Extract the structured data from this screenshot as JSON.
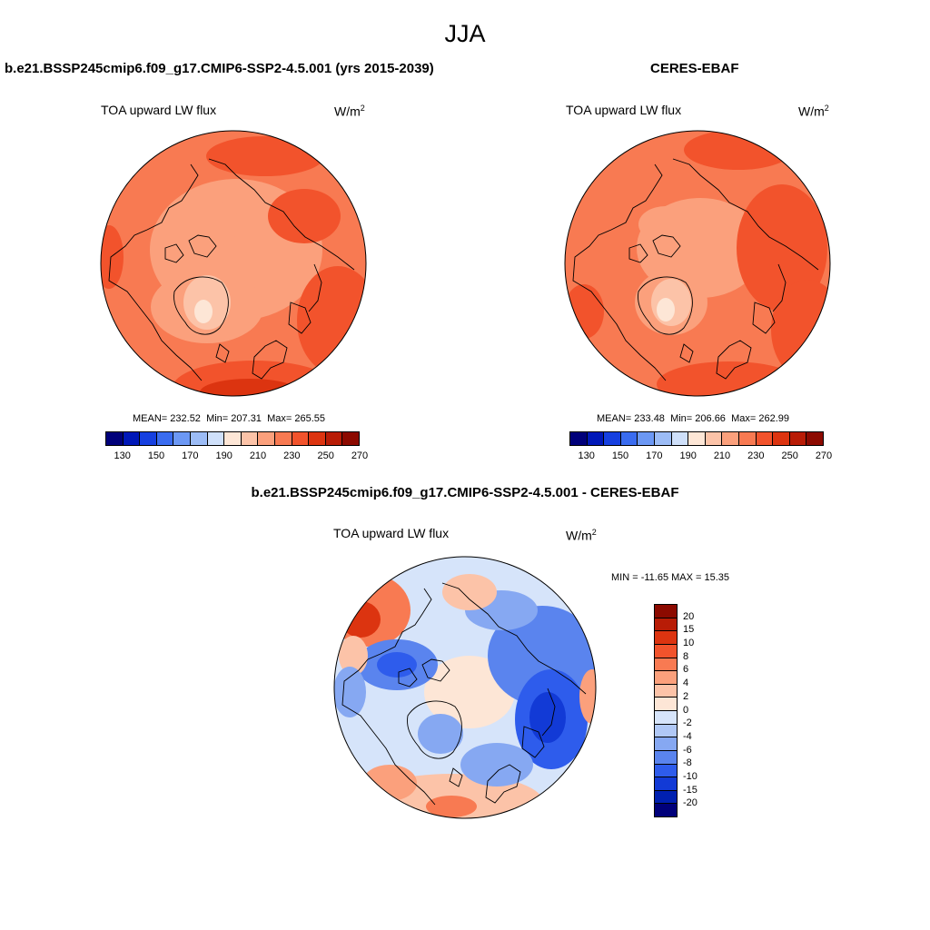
{
  "figure": {
    "title": "JJA"
  },
  "left_panel": {
    "title": "b.e21.BSSP245cmip6.f09_g17.CMIP6-SSP2-4.5.001 (yrs 2015-2039)",
    "subtitle": "TOA upward LW flux",
    "units_base": "W/m",
    "units_exp": "2",
    "mean_label": "MEAN=",
    "mean": "232.52",
    "min_label": "Min=",
    "min": "207.31",
    "max_label": "Max=",
    "max": "265.55"
  },
  "right_panel": {
    "title": "CERES-EBAF",
    "subtitle": "TOA upward LW flux",
    "units_base": "W/m",
    "units_exp": "2",
    "mean_label": "MEAN=",
    "mean": "233.48",
    "min_label": "Min=",
    "min": "206.66",
    "max_label": "Max=",
    "max": "262.99"
  },
  "diff_panel": {
    "title": "b.e21.BSSP245cmip6.f09_g17.CMIP6-SSP2-4.5.001 - CERES-EBAF",
    "subtitle": "TOA upward LW flux",
    "units_base": "W/m",
    "units_exp": "2",
    "minmax": "MIN = -11.65 MAX =  15.35"
  },
  "abs_colorbar": {
    "colors": [
      "#00007a",
      "#0018b8",
      "#1640e0",
      "#3a6cf0",
      "#6c98f4",
      "#9cbcf6",
      "#cfe0fa",
      "#fde6d6",
      "#fcc3a8",
      "#fba07c",
      "#f87a52",
      "#f2532c",
      "#dc3410",
      "#b81c06",
      "#8c0a00"
    ],
    "tick_labels": [
      "130",
      "150",
      "170",
      "190",
      "210",
      "230",
      "250",
      "270"
    ]
  },
  "diff_colorbar": {
    "colors": [
      "#8c0a00",
      "#b81c06",
      "#dc3410",
      "#f2532c",
      "#f87a52",
      "#fba07c",
      "#fcc3a8",
      "#fde6d6",
      "#d6e4fa",
      "#b0c8f6",
      "#86a8f2",
      "#5a84ee",
      "#2e5cec",
      "#123ad6",
      "#0020b0",
      "#00007a"
    ],
    "tick_labels": [
      "20",
      "15",
      "10",
      "8",
      "6",
      "4",
      "2",
      "0",
      "-2",
      "-4",
      "-6",
      "-8",
      "-10",
      "-15",
      "-20"
    ]
  }
}
